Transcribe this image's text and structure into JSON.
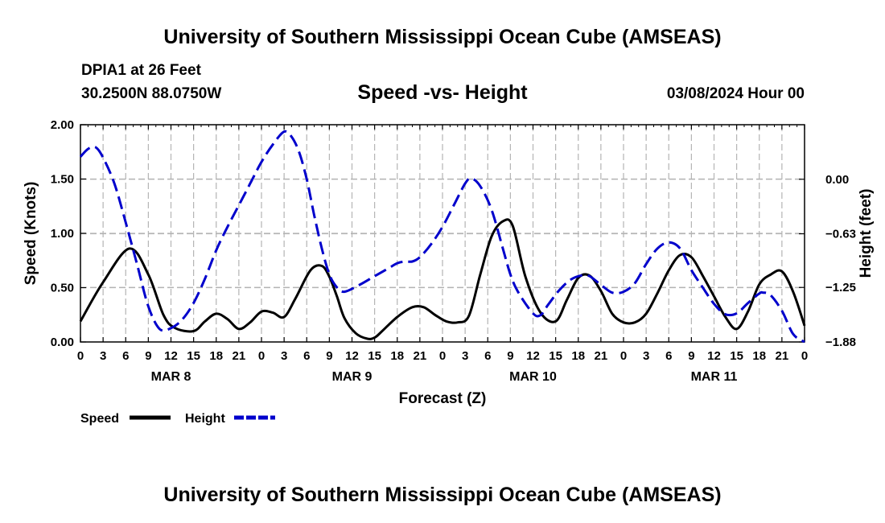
{
  "header": {
    "title": "University of Southern Mississippi Ocean Cube (AMSEAS)",
    "station": "DPIA1 at 26 Feet",
    "coords": "30.2500N  88.0750W",
    "subtitle": "Speed -vs- Height",
    "datetime": "03/08/2024 Hour 00"
  },
  "footer": {
    "title": "University of Southern Mississippi Ocean Cube (AMSEAS)"
  },
  "legend": {
    "speed_label": "Speed",
    "height_label": "Height"
  },
  "chart_data": {
    "type": "line",
    "title": "Speed -vs- Height",
    "xlabel": "Forecast (Z)",
    "ylabel": "Speed (Knots)",
    "y2label": "Height (feet)",
    "x_range": [
      0,
      96
    ],
    "ylim": [
      0,
      2.0
    ],
    "y2lim": [
      -1.88,
      0.63
    ],
    "x_ticks": [
      {
        "x": 0,
        "label": "0"
      },
      {
        "x": 3,
        "label": "3"
      },
      {
        "x": 6,
        "label": "6"
      },
      {
        "x": 9,
        "label": "9"
      },
      {
        "x": 12,
        "label": "12"
      },
      {
        "x": 15,
        "label": "15"
      },
      {
        "x": 18,
        "label": "18"
      },
      {
        "x": 21,
        "label": "21"
      },
      {
        "x": 24,
        "label": "0"
      },
      {
        "x": 27,
        "label": "3"
      },
      {
        "x": 30,
        "label": "6"
      },
      {
        "x": 33,
        "label": "9"
      },
      {
        "x": 36,
        "label": "12"
      },
      {
        "x": 39,
        "label": "15"
      },
      {
        "x": 42,
        "label": "18"
      },
      {
        "x": 45,
        "label": "21"
      },
      {
        "x": 48,
        "label": "0"
      },
      {
        "x": 51,
        "label": "3"
      },
      {
        "x": 54,
        "label": "6"
      },
      {
        "x": 57,
        "label": "9"
      },
      {
        "x": 60,
        "label": "12"
      },
      {
        "x": 63,
        "label": "15"
      },
      {
        "x": 66,
        "label": "18"
      },
      {
        "x": 69,
        "label": "21"
      },
      {
        "x": 72,
        "label": "0"
      },
      {
        "x": 75,
        "label": "3"
      },
      {
        "x": 78,
        "label": "6"
      },
      {
        "x": 81,
        "label": "9"
      },
      {
        "x": 84,
        "label": "12"
      },
      {
        "x": 87,
        "label": "15"
      },
      {
        "x": 90,
        "label": "18"
      },
      {
        "x": 93,
        "label": "21"
      },
      {
        "x": 96,
        "label": "0"
      }
    ],
    "date_labels": [
      {
        "x": 12,
        "label": "MAR 8"
      },
      {
        "x": 36,
        "label": "MAR 9"
      },
      {
        "x": 60,
        "label": "MAR 10"
      },
      {
        "x": 84,
        "label": "MAR 11"
      }
    ],
    "y_ticks": [
      0.0,
      0.5,
      1.0,
      1.5,
      2.0
    ],
    "y_tick_labels": [
      "0.00",
      "0.50",
      "1.00",
      "1.50",
      "2.00"
    ],
    "y2_ticks": [
      0.0,
      -0.63,
      -1.25,
      -1.88
    ],
    "y2_tick_labels": [
      "0.00",
      "−0.63",
      "−1.25",
      "−1.88"
    ],
    "series": [
      {
        "name": "Speed",
        "axis": "left",
        "color": "#000000",
        "dash": "solid",
        "x": [
          0,
          3,
          6.5,
          9,
          11,
          12.5,
          15,
          16.5,
          18,
          19.5,
          21,
          22.5,
          24,
          25.5,
          27,
          28.5,
          30.5,
          32,
          33,
          34,
          35,
          36.5,
          38,
          39,
          40,
          42,
          44,
          45.5,
          47,
          48.5,
          50,
          51.5,
          53,
          54.5,
          56,
          57.3,
          59,
          61,
          63,
          64.5,
          66,
          67.5,
          69,
          70.5,
          72,
          73.5,
          75,
          76.5,
          78,
          79.5,
          81,
          82.5,
          84,
          85.5,
          87,
          88.5,
          90,
          91.5,
          93,
          94.5,
          96
        ],
        "values": [
          0.19,
          0.55,
          0.86,
          0.62,
          0.25,
          0.13,
          0.1,
          0.19,
          0.26,
          0.21,
          0.12,
          0.18,
          0.28,
          0.27,
          0.23,
          0.4,
          0.66,
          0.7,
          0.6,
          0.42,
          0.22,
          0.08,
          0.03,
          0.04,
          0.1,
          0.23,
          0.32,
          0.32,
          0.25,
          0.19,
          0.18,
          0.24,
          0.62,
          0.97,
          1.11,
          1.07,
          0.6,
          0.27,
          0.19,
          0.39,
          0.59,
          0.61,
          0.47,
          0.26,
          0.18,
          0.18,
          0.26,
          0.45,
          0.66,
          0.8,
          0.78,
          0.61,
          0.42,
          0.23,
          0.12,
          0.28,
          0.53,
          0.62,
          0.65,
          0.46,
          0.15
        ]
      },
      {
        "name": "Height",
        "axis": "right",
        "color": "#0000cc",
        "dash": "dashed",
        "x": [
          0,
          1,
          2,
          3,
          4.5,
          6,
          7.5,
          9,
          10.5,
          12,
          13.5,
          15,
          16.5,
          18,
          19.5,
          21,
          22.5,
          24,
          25.5,
          27,
          28,
          29,
          30,
          31,
          32,
          33,
          34,
          35,
          37,
          39,
          41,
          42,
          43,
          44,
          45,
          46.5,
          48,
          49.5,
          51,
          51.8,
          53,
          54.5,
          56,
          57,
          58,
          60,
          61,
          62,
          63.5,
          65,
          66.5,
          67.5,
          69,
          70.5,
          72,
          73.5,
          75,
          76.5,
          78,
          79.5,
          81,
          82.5,
          84,
          85.5,
          87,
          88.5,
          90,
          90.5,
          91.5,
          93,
          94.5,
          96
        ],
        "values": [
          0.26,
          0.35,
          0.37,
          0.25,
          -0.05,
          -0.5,
          -0.98,
          -1.47,
          -1.73,
          -1.72,
          -1.62,
          -1.43,
          -1.15,
          -0.82,
          -0.55,
          -0.3,
          -0.05,
          0.2,
          0.4,
          0.55,
          0.49,
          0.31,
          0.0,
          -0.42,
          -0.8,
          -1.1,
          -1.25,
          -1.3,
          -1.22,
          -1.12,
          -1.02,
          -0.97,
          -0.95,
          -0.95,
          -0.9,
          -0.75,
          -0.55,
          -0.3,
          -0.05,
          0.01,
          -0.08,
          -0.35,
          -0.8,
          -1.1,
          -1.3,
          -1.55,
          -1.57,
          -1.45,
          -1.28,
          -1.16,
          -1.11,
          -1.12,
          -1.22,
          -1.31,
          -1.3,
          -1.2,
          -0.98,
          -0.8,
          -0.73,
          -0.8,
          -1.05,
          -1.25,
          -1.44,
          -1.56,
          -1.55,
          -1.43,
          -1.32,
          -1.31,
          -1.34,
          -1.52,
          -1.79,
          -1.88
        ]
      }
    ]
  }
}
